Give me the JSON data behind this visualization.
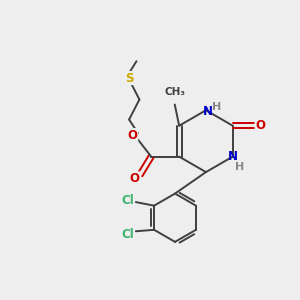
{
  "background_color": "#eeeeee",
  "atom_colors": {
    "C": "#404040",
    "N": "#0000cc",
    "O": "#cc0000",
    "S": "#ccaa00",
    "Cl": "#3cb371",
    "H": "#888888"
  },
  "figsize": [
    3.0,
    3.0
  ],
  "dpi": 100,
  "xlim": [
    0,
    10
  ],
  "ylim": [
    0,
    10
  ]
}
